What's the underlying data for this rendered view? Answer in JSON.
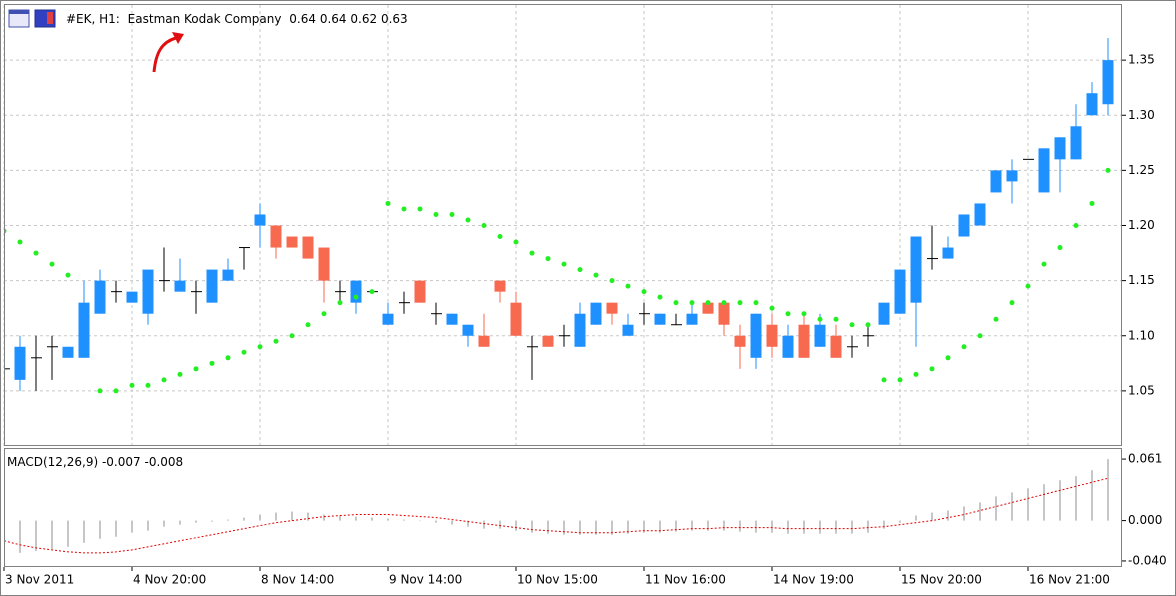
{
  "chart_data": [
    {
      "type": "candlestick",
      "symbol": "#EK, H1:",
      "title": "Eastman Kodak Company",
      "ohlc": [
        0.64,
        0.64,
        0.62,
        0.63
      ],
      "categories": [
        "3 Nov 2011",
        null,
        null,
        null,
        null,
        null,
        null,
        null,
        "4 Nov 20:00",
        null,
        null,
        null,
        null,
        null,
        null,
        null,
        "8 Nov 14:00",
        null,
        null,
        null,
        null,
        null,
        null,
        null,
        "9 Nov 14:00",
        null,
        null,
        null,
        null,
        null,
        null,
        null,
        "10 Nov 15:00",
        null,
        null,
        null,
        null,
        null,
        null,
        null,
        "11 Nov 16:00",
        null,
        null,
        null,
        null,
        null,
        null,
        null,
        "14 Nov 19:00",
        null,
        null,
        null,
        null,
        null,
        null,
        null,
        "15 Nov 20:00",
        null,
        null,
        null,
        null,
        null,
        null,
        null,
        "16 Nov 21:00",
        null,
        null,
        null,
        null,
        null
      ],
      "open": [
        1.07,
        1.06,
        1.08,
        1.09,
        1.08,
        1.08,
        1.12,
        1.14,
        1.13,
        1.12,
        1.15,
        1.14,
        1.14,
        1.13,
        1.15,
        1.18,
        1.2,
        1.2,
        1.19,
        1.19,
        1.18,
        1.14,
        1.13,
        1.14,
        1.11,
        1.13,
        1.15,
        1.12,
        1.11,
        1.1,
        1.1,
        1.15,
        1.13,
        1.09,
        1.1,
        1.1,
        1.09,
        1.11,
        1.13,
        1.1,
        1.12,
        1.11,
        1.11,
        1.11,
        1.13,
        1.13,
        1.1,
        1.08,
        1.11,
        1.08,
        1.11,
        1.09,
        1.1,
        1.09,
        1.1,
        1.11,
        1.12,
        1.13,
        1.17,
        1.17,
        1.19,
        1.2,
        1.23,
        1.24,
        1.26,
        1.23,
        1.26,
        1.26,
        1.3,
        1.31
      ],
      "high": [
        1.08,
        1.1,
        1.1,
        1.1,
        1.09,
        1.15,
        1.16,
        1.15,
        1.14,
        1.16,
        1.18,
        1.17,
        1.15,
        1.16,
        1.17,
        1.18,
        1.22,
        1.2,
        1.19,
        1.19,
        1.18,
        1.15,
        1.15,
        1.14,
        1.13,
        1.14,
        1.15,
        1.13,
        1.12,
        1.11,
        1.12,
        1.15,
        1.14,
        1.1,
        1.1,
        1.11,
        1.13,
        1.13,
        1.13,
        1.12,
        1.13,
        1.12,
        1.12,
        1.13,
        1.13,
        1.13,
        1.11,
        1.12,
        1.12,
        1.11,
        1.12,
        1.12,
        1.11,
        1.1,
        1.11,
        1.13,
        1.16,
        1.19,
        1.2,
        1.19,
        1.21,
        1.22,
        1.25,
        1.26,
        1.26,
        1.27,
        1.28,
        1.31,
        1.33,
        1.37
      ],
      "low": [
        1.06,
        1.05,
        1.05,
        1.06,
        1.08,
        1.08,
        1.12,
        1.13,
        1.13,
        1.11,
        1.14,
        1.14,
        1.12,
        1.13,
        1.15,
        1.16,
        1.18,
        1.17,
        1.18,
        1.17,
        1.13,
        1.13,
        1.12,
        1.14,
        1.11,
        1.12,
        1.13,
        1.11,
        1.11,
        1.09,
        1.09,
        1.13,
        1.1,
        1.06,
        1.09,
        1.09,
        1.09,
        1.11,
        1.11,
        1.1,
        1.11,
        1.11,
        1.11,
        1.11,
        1.12,
        1.1,
        1.07,
        1.07,
        1.08,
        1.08,
        1.08,
        1.09,
        1.08,
        1.08,
        1.09,
        1.11,
        1.12,
        1.09,
        1.16,
        1.17,
        1.19,
        1.2,
        1.23,
        1.22,
        1.26,
        1.23,
        1.23,
        1.26,
        1.3,
        1.3
      ],
      "close": [
        1.07,
        1.09,
        1.08,
        1.09,
        1.09,
        1.13,
        1.15,
        1.14,
        1.14,
        1.16,
        1.15,
        1.15,
        1.14,
        1.16,
        1.16,
        1.18,
        1.21,
        1.18,
        1.18,
        1.17,
        1.15,
        1.14,
        1.15,
        1.14,
        1.12,
        1.13,
        1.13,
        1.12,
        1.12,
        1.11,
        1.09,
        1.14,
        1.1,
        1.09,
        1.09,
        1.1,
        1.12,
        1.13,
        1.12,
        1.11,
        1.12,
        1.12,
        1.11,
        1.12,
        1.12,
        1.11,
        1.09,
        1.12,
        1.09,
        1.1,
        1.08,
        1.11,
        1.08,
        1.09,
        1.1,
        1.13,
        1.16,
        1.19,
        1.17,
        1.18,
        1.21,
        1.22,
        1.25,
        1.25,
        1.26,
        1.27,
        1.28,
        1.29,
        1.32,
        1.35
      ],
      "up_color": "#1e90ff",
      "down_color": "#f76a4f",
      "doji_color": "#000000",
      "sar": {
        "color": "#22ee22",
        "values": [
          1.195,
          1.185,
          1.175,
          1.165,
          1.155,
          null,
          1.05,
          1.05,
          1.055,
          1.055,
          1.06,
          1.065,
          1.07,
          1.075,
          1.08,
          1.085,
          1.09,
          1.095,
          1.1,
          1.11,
          1.12,
          1.13,
          1.135,
          1.14,
          1.22,
          1.215,
          1.215,
          1.21,
          1.21,
          1.205,
          1.2,
          1.19,
          1.185,
          1.175,
          1.17,
          1.165,
          1.16,
          1.155,
          1.15,
          1.145,
          1.14,
          1.135,
          1.13,
          1.13,
          1.13,
          1.13,
          1.13,
          1.13,
          1.125,
          1.12,
          1.12,
          1.115,
          1.115,
          1.11,
          1.11,
          1.06,
          1.06,
          1.065,
          1.07,
          1.08,
          1.09,
          1.1,
          1.115,
          1.13,
          1.145,
          1.165,
          1.18,
          1.2,
          1.22,
          1.25
        ]
      },
      "ylim": [
        1.0,
        1.4
      ],
      "yticks": [
        {
          "value": 1.05,
          "label": "1.05"
        },
        {
          "value": 1.1,
          "label": "1.10"
        },
        {
          "value": 1.15,
          "label": "1.15"
        },
        {
          "value": 1.2,
          "label": "1.20"
        },
        {
          "value": 1.25,
          "label": "1.25"
        },
        {
          "value": 1.3,
          "label": "1.30"
        },
        {
          "value": 1.35,
          "label": "1.35"
        }
      ],
      "grid": true
    },
    {
      "type": "bar",
      "title": "MACD(12,26,9)",
      "title_values": [
        -0.007,
        -0.008
      ],
      "color": "#b4b4b4",
      "values": [
        -0.03,
        -0.032,
        -0.03,
        -0.028,
        -0.026,
        -0.022,
        -0.018,
        -0.016,
        -0.012,
        -0.01,
        -0.006,
        -0.004,
        -0.002,
        -0.001,
        0.001,
        0.003,
        0.006,
        0.008,
        0.009,
        0.008,
        0.006,
        0.005,
        0.004,
        0.003,
        0.002,
        0.001,
        0.0,
        -0.002,
        -0.004,
        -0.006,
        -0.008,
        -0.008,
        -0.01,
        -0.012,
        -0.013,
        -0.014,
        -0.014,
        -0.014,
        -0.014,
        -0.013,
        -0.012,
        -0.012,
        -0.011,
        -0.01,
        -0.01,
        -0.01,
        -0.011,
        -0.012,
        -0.012,
        -0.013,
        -0.013,
        -0.013,
        -0.013,
        -0.013,
        -0.012,
        -0.008,
        -0.002,
        0.005,
        0.008,
        0.01,
        0.014,
        0.018,
        0.024,
        0.028,
        0.032,
        0.036,
        0.04,
        0.044,
        0.05,
        0.061
      ],
      "signal": {
        "color": "#e00000",
        "values": [
          -0.02,
          -0.024,
          -0.027,
          -0.029,
          -0.031,
          -0.032,
          -0.032,
          -0.031,
          -0.029,
          -0.026,
          -0.023,
          -0.02,
          -0.017,
          -0.014,
          -0.011,
          -0.008,
          -0.005,
          -0.002,
          0.0,
          0.002,
          0.004,
          0.005,
          0.006,
          0.006,
          0.006,
          0.005,
          0.004,
          0.003,
          0.001,
          -0.001,
          -0.003,
          -0.005,
          -0.007,
          -0.009,
          -0.01,
          -0.011,
          -0.012,
          -0.012,
          -0.012,
          -0.011,
          -0.01,
          -0.01,
          -0.009,
          -0.008,
          -0.008,
          -0.007,
          -0.007,
          -0.007,
          -0.007,
          -0.008,
          -0.008,
          -0.008,
          -0.008,
          -0.008,
          -0.007,
          -0.006,
          -0.004,
          -0.002,
          0.0,
          0.003,
          0.006,
          0.01,
          0.014,
          0.018,
          0.022,
          0.026,
          0.03,
          0.034,
          0.038,
          0.042
        ]
      },
      "ylim": [
        -0.046,
        0.07
      ],
      "yticks": [
        {
          "value": 0.061,
          "label": "0.061"
        },
        {
          "value": 0,
          "label": "0.000"
        },
        {
          "value": -0.04,
          "label": "-0.040"
        }
      ]
    }
  ]
}
